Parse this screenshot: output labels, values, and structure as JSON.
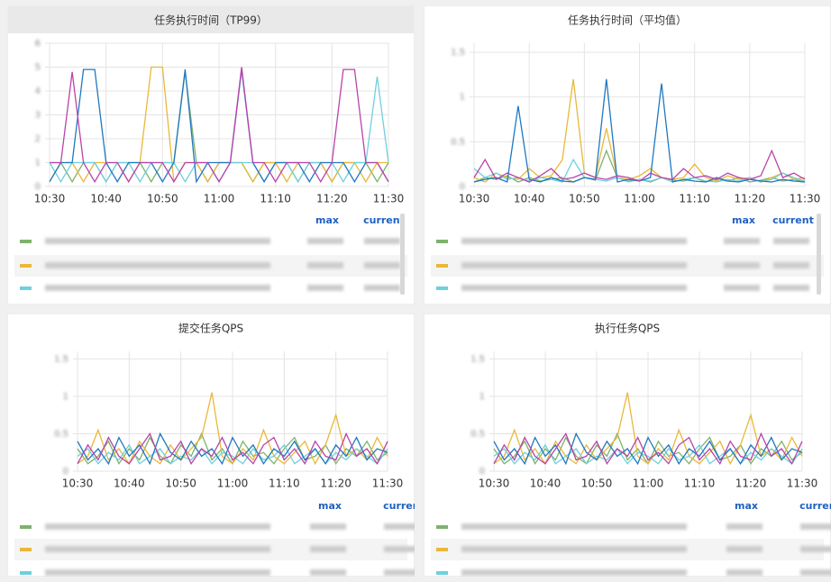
{
  "chart_data": [
    {
      "type": "line",
      "title": "任务执行时间（TP99）",
      "x": [
        "10:30",
        "10:32",
        "10:34",
        "10:36",
        "10:38",
        "10:40",
        "10:42",
        "10:44",
        "10:46",
        "10:48",
        "10:50",
        "10:52",
        "10:54",
        "10:56",
        "10:58",
        "11:00",
        "11:02",
        "11:04",
        "11:06",
        "11:08",
        "11:10",
        "11:12",
        "11:14",
        "11:16",
        "11:18",
        "11:20",
        "11:22",
        "11:24",
        "11:26",
        "11:28",
        "11:30"
      ],
      "xlim": [
        "10:30",
        "11:30"
      ],
      "xticks": [
        "10:30",
        "10:40",
        "10:50",
        "11:00",
        "11:10",
        "11:20",
        "11:30"
      ],
      "ylim": [
        0,
        6
      ],
      "yticks": [
        0,
        1,
        2,
        3,
        4,
        5,
        6
      ],
      "grid": true,
      "legend_columns": [
        "max",
        "current"
      ],
      "series": [
        {
          "color": "#7eb26d",
          "values": [
            1,
            1,
            0.2,
            1,
            1,
            0.2,
            1,
            1,
            1,
            0.2,
            1,
            1,
            4.8,
            1,
            0.2,
            1,
            1,
            1,
            0.2,
            1,
            1,
            1,
            0.2,
            1,
            1,
            0.2,
            1,
            1,
            1,
            0.2,
            1
          ]
        },
        {
          "color": "#eab839",
          "values": [
            0.2,
            1,
            1,
            0.2,
            1,
            1,
            1,
            0.2,
            1,
            5,
            5,
            0.2,
            1,
            1,
            0.2,
            1,
            1,
            1,
            0.2,
            1,
            1,
            0.2,
            1,
            1,
            1,
            0.2,
            1,
            1,
            0.2,
            1,
            1
          ]
        },
        {
          "color": "#6ed0e0",
          "values": [
            1,
            0.2,
            1,
            1,
            1,
            0.2,
            1,
            1,
            0.2,
            1,
            1,
            1,
            0.2,
            1,
            1,
            0.2,
            1,
            1,
            1,
            0.2,
            1,
            1,
            0.2,
            1,
            1,
            1,
            0.2,
            1,
            1,
            4.6,
            1
          ]
        },
        {
          "color": "#1f78c1",
          "values": [
            0.2,
            1,
            1,
            4.9,
            4.9,
            1,
            0.2,
            1,
            1,
            1,
            0.2,
            1,
            4.9,
            0.2,
            1,
            1,
            1,
            4.9,
            1,
            0.2,
            1,
            1,
            1,
            0.2,
            1,
            1,
            1,
            0.2,
            1,
            1,
            0.2
          ]
        },
        {
          "color": "#ba43a9",
          "values": [
            1,
            1,
            4.8,
            1,
            0.2,
            1,
            1,
            0.2,
            1,
            1,
            1,
            0.2,
            1,
            1,
            1,
            0.2,
            1,
            5,
            1,
            1,
            0.2,
            1,
            1,
            1,
            0.2,
            1,
            4.9,
            4.9,
            1,
            1,
            0.2
          ]
        }
      ]
    },
    {
      "type": "line",
      "title": "任务执行时间（平均值）",
      "x": [
        "10:30",
        "10:32",
        "10:34",
        "10:36",
        "10:38",
        "10:40",
        "10:42",
        "10:44",
        "10:46",
        "10:48",
        "10:50",
        "10:52",
        "10:54",
        "10:56",
        "10:58",
        "11:00",
        "11:02",
        "11:04",
        "11:06",
        "11:08",
        "11:10",
        "11:12",
        "11:14",
        "11:16",
        "11:18",
        "11:20",
        "11:22",
        "11:24",
        "11:26",
        "11:28",
        "11:30"
      ],
      "xlim": [
        "10:30",
        "11:30"
      ],
      "xticks": [
        "10:30",
        "10:40",
        "10:50",
        "11:00",
        "11:10",
        "11:20",
        "11:30"
      ],
      "ylim": [
        0,
        1.6
      ],
      "yticks": [
        0,
        0.5,
        1,
        1.5
      ],
      "grid": true,
      "legend_columns": [
        "max",
        "current"
      ],
      "series": [
        {
          "color": "#7eb26d",
          "values": [
            0.05,
            0.1,
            0.08,
            0.12,
            0.05,
            0.1,
            0.06,
            0.08,
            0.1,
            0.05,
            0.1,
            0.07,
            0.4,
            0.1,
            0.06,
            0.08,
            0.05,
            0.1,
            0.07,
            0.06,
            0.1,
            0.05,
            0.08,
            0.06,
            0.1,
            0.05,
            0.07,
            0.1,
            0.06,
            0.08,
            0.05
          ]
        },
        {
          "color": "#eab839",
          "values": [
            0.1,
            0.05,
            0.15,
            0.1,
            0.08,
            0.2,
            0.1,
            0.12,
            0.3,
            1.2,
            0.15,
            0.1,
            0.65,
            0.1,
            0.08,
            0.12,
            0.2,
            0.1,
            0.08,
            0.1,
            0.25,
            0.1,
            0.06,
            0.12,
            0.08,
            0.1,
            0.05,
            0.1,
            0.15,
            0.08,
            0.1
          ]
        },
        {
          "color": "#6ed0e0",
          "values": [
            0.2,
            0.1,
            0.15,
            0.08,
            0.1,
            0.06,
            0.1,
            0.08,
            0.05,
            0.3,
            0.1,
            0.08,
            0.06,
            0.1,
            0.05,
            0.08,
            0.06,
            0.1,
            0.05,
            0.08,
            0.1,
            0.06,
            0.05,
            0.08,
            0.06,
            0.1,
            0.05,
            0.08,
            0.15,
            0.1,
            0.06
          ]
        },
        {
          "color": "#1f78c1",
          "values": [
            0.05,
            0.08,
            0.1,
            0.05,
            0.9,
            0.08,
            0.05,
            0.1,
            0.06,
            0.05,
            0.1,
            0.08,
            1.2,
            0.05,
            0.08,
            0.06,
            0.1,
            1.15,
            0.05,
            0.08,
            0.06,
            0.05,
            0.1,
            0.06,
            0.05,
            0.08,
            0.06,
            0.05,
            0.08,
            0.06,
            0.05
          ]
        },
        {
          "color": "#ba43a9",
          "values": [
            0.1,
            0.3,
            0.08,
            0.15,
            0.1,
            0.05,
            0.12,
            0.2,
            0.08,
            0.1,
            0.15,
            0.1,
            0.08,
            0.12,
            0.1,
            0.06,
            0.15,
            0.1,
            0.08,
            0.2,
            0.1,
            0.12,
            0.08,
            0.15,
            0.1,
            0.08,
            0.12,
            0.4,
            0.1,
            0.15,
            0.08
          ]
        }
      ]
    },
    {
      "type": "line",
      "title": "提交任务QPS",
      "x": [
        "10:30",
        "10:32",
        "10:34",
        "10:36",
        "10:38",
        "10:40",
        "10:42",
        "10:44",
        "10:46",
        "10:48",
        "10:50",
        "10:52",
        "10:54",
        "10:56",
        "10:58",
        "11:00",
        "11:02",
        "11:04",
        "11:06",
        "11:08",
        "11:10",
        "11:12",
        "11:14",
        "11:16",
        "11:18",
        "11:20",
        "11:22",
        "11:24",
        "11:26",
        "11:28",
        "11:30"
      ],
      "xlim": [
        "10:30",
        "11:30"
      ],
      "xticks": [
        "10:30",
        "10:40",
        "10:50",
        "11:00",
        "11:10",
        "11:20",
        "11:30"
      ],
      "ylim": [
        0,
        1.6
      ],
      "yticks": [
        0,
        0.5,
        1,
        1.5
      ],
      "grid": true,
      "legend_columns": [
        "max",
        "current"
      ],
      "series": [
        {
          "color": "#7eb26d",
          "values": [
            0.3,
            0.1,
            0.2,
            0.4,
            0.1,
            0.3,
            0.15,
            0.45,
            0.2,
            0.1,
            0.35,
            0.2,
            0.5,
            0.15,
            0.3,
            0.1,
            0.4,
            0.2,
            0.25,
            0.1,
            0.3,
            0.45,
            0.15,
            0.2,
            0.35,
            0.1,
            0.3,
            0.2,
            0.4,
            0.15,
            0.25
          ]
        },
        {
          "color": "#eab839",
          "values": [
            0.1,
            0.2,
            0.55,
            0.15,
            0.3,
            0.1,
            0.4,
            0.2,
            0.1,
            0.35,
            0.15,
            0.3,
            0.45,
            1.05,
            0.2,
            0.1,
            0.3,
            0.15,
            0.55,
            0.2,
            0.1,
            0.25,
            0.4,
            0.1,
            0.35,
            0.75,
            0.2,
            0.3,
            0.15,
            0.45,
            0.2
          ]
        },
        {
          "color": "#6ed0e0",
          "values": [
            0.2,
            0.3,
            0.1,
            0.25,
            0.15,
            0.35,
            0.1,
            0.2,
            0.3,
            0.1,
            0.2,
            0.15,
            0.3,
            0.1,
            0.25,
            0.2,
            0.1,
            0.3,
            0.15,
            0.2,
            0.35,
            0.1,
            0.2,
            0.3,
            0.1,
            0.25,
            0.15,
            0.3,
            0.2,
            0.1,
            0.3
          ]
        },
        {
          "color": "#1f78c1",
          "values": [
            0.4,
            0.15,
            0.3,
            0.1,
            0.45,
            0.2,
            0.35,
            0.1,
            0.5,
            0.25,
            0.15,
            0.4,
            0.2,
            0.3,
            0.1,
            0.45,
            0.2,
            0.35,
            0.1,
            0.3,
            0.2,
            0.4,
            0.15,
            0.3,
            0.1,
            0.35,
            0.2,
            0.45,
            0.15,
            0.3,
            0.25
          ]
        },
        {
          "color": "#ba43a9",
          "values": [
            0.1,
            0.35,
            0.15,
            0.45,
            0.2,
            0.1,
            0.3,
            0.5,
            0.15,
            0.2,
            0.4,
            0.1,
            0.3,
            0.2,
            0.45,
            0.15,
            0.25,
            0.1,
            0.35,
            0.45,
            0.15,
            0.3,
            0.1,
            0.4,
            0.2,
            0.15,
            0.5,
            0.2,
            0.3,
            0.1,
            0.4
          ]
        }
      ]
    },
    {
      "type": "line",
      "title": "执行任务QPS",
      "x": [
        "10:30",
        "10:32",
        "10:34",
        "10:36",
        "10:38",
        "10:40",
        "10:42",
        "10:44",
        "10:46",
        "10:48",
        "10:50",
        "10:52",
        "10:54",
        "10:56",
        "10:58",
        "11:00",
        "11:02",
        "11:04",
        "11:06",
        "11:08",
        "11:10",
        "11:12",
        "11:14",
        "11:16",
        "11:18",
        "11:20",
        "11:22",
        "11:24",
        "11:26",
        "11:28",
        "11:30"
      ],
      "xlim": [
        "10:30",
        "11:30"
      ],
      "xticks": [
        "10:30",
        "10:40",
        "10:50",
        "11:00",
        "11:10",
        "11:20",
        "11:30"
      ],
      "ylim": [
        0,
        1.6
      ],
      "yticks": [
        0,
        0.5,
        1,
        1.5
      ],
      "grid": true,
      "legend_columns": [
        "max",
        "current"
      ],
      "series": [
        {
          "color": "#7eb26d",
          "values": [
            0.3,
            0.1,
            0.2,
            0.4,
            0.1,
            0.3,
            0.15,
            0.45,
            0.2,
            0.1,
            0.35,
            0.2,
            0.5,
            0.15,
            0.3,
            0.1,
            0.4,
            0.2,
            0.25,
            0.1,
            0.3,
            0.45,
            0.15,
            0.2,
            0.35,
            0.1,
            0.3,
            0.2,
            0.4,
            0.15,
            0.25
          ]
        },
        {
          "color": "#eab839",
          "values": [
            0.1,
            0.2,
            0.55,
            0.15,
            0.3,
            0.1,
            0.4,
            0.2,
            0.1,
            0.35,
            0.15,
            0.3,
            0.45,
            1.05,
            0.2,
            0.1,
            0.3,
            0.15,
            0.55,
            0.2,
            0.1,
            0.25,
            0.4,
            0.1,
            0.35,
            0.75,
            0.2,
            0.3,
            0.15,
            0.45,
            0.2
          ]
        },
        {
          "color": "#6ed0e0",
          "values": [
            0.2,
            0.3,
            0.1,
            0.25,
            0.15,
            0.35,
            0.1,
            0.2,
            0.3,
            0.1,
            0.2,
            0.15,
            0.3,
            0.1,
            0.25,
            0.2,
            0.1,
            0.3,
            0.15,
            0.2,
            0.35,
            0.1,
            0.2,
            0.3,
            0.1,
            0.25,
            0.15,
            0.3,
            0.2,
            0.1,
            0.3
          ]
        },
        {
          "color": "#1f78c1",
          "values": [
            0.4,
            0.15,
            0.3,
            0.1,
            0.45,
            0.2,
            0.35,
            0.1,
            0.5,
            0.25,
            0.15,
            0.4,
            0.2,
            0.3,
            0.1,
            0.45,
            0.2,
            0.35,
            0.1,
            0.3,
            0.2,
            0.4,
            0.15,
            0.3,
            0.1,
            0.35,
            0.2,
            0.45,
            0.15,
            0.3,
            0.25
          ]
        },
        {
          "color": "#ba43a9",
          "values": [
            0.1,
            0.35,
            0.15,
            0.45,
            0.2,
            0.1,
            0.3,
            0.5,
            0.15,
            0.2,
            0.4,
            0.1,
            0.3,
            0.2,
            0.45,
            0.15,
            0.25,
            0.1,
            0.35,
            0.45,
            0.15,
            0.3,
            0.1,
            0.4,
            0.2,
            0.15,
            0.5,
            0.2,
            0.3,
            0.1,
            0.4
          ]
        }
      ]
    }
  ]
}
